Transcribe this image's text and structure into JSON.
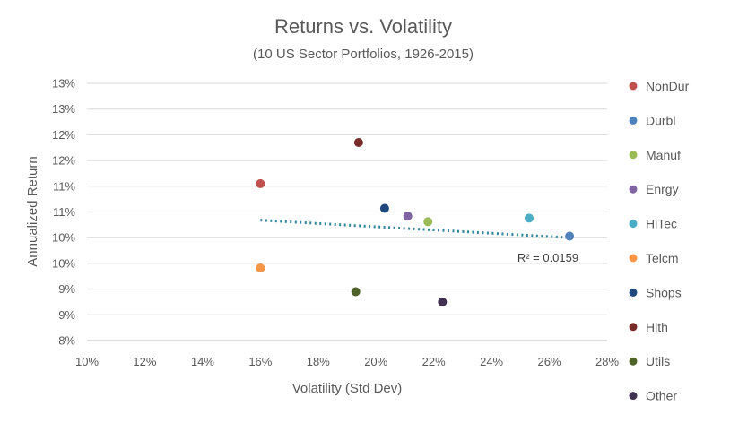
{
  "chart_data": {
    "type": "scatter",
    "title": "Returns vs. Volatility",
    "subtitle": "(10 US Sector Portfolios, 1926-2015)",
    "xlabel": "Volatility (Std Dev)",
    "ylabel": "Annualized Return",
    "xlim": [
      0.1,
      0.28
    ],
    "ylim": [
      0.08,
      0.13
    ],
    "x_ticks": [
      0.1,
      0.12,
      0.14,
      0.16,
      0.18,
      0.2,
      0.22,
      0.24,
      0.26,
      0.28
    ],
    "x_tick_labels": [
      "10%",
      "12%",
      "14%",
      "16%",
      "18%",
      "20%",
      "22%",
      "24%",
      "26%",
      "28%"
    ],
    "y_ticks": [
      0.08,
      0.085,
      0.09,
      0.095,
      0.1,
      0.105,
      0.11,
      0.115,
      0.12,
      0.125,
      0.13
    ],
    "y_tick_labels": [
      "8%",
      "9%",
      "9%",
      "10%",
      "10%",
      "11%",
      "11%",
      "12%",
      "12%",
      "13%",
      "13%"
    ],
    "grid": "horizontal",
    "legend_position": "right",
    "series": [
      {
        "name": "NonDur",
        "color": "#c0504d",
        "x": 0.16,
        "y": 0.1105
      },
      {
        "name": "Durbl",
        "color": "#4f81bd",
        "x": 0.267,
        "y": 0.1003
      },
      {
        "name": "Manuf",
        "color": "#9bbb59",
        "x": 0.218,
        "y": 0.1031
      },
      {
        "name": "Enrgy",
        "color": "#8064a2",
        "x": 0.211,
        "y": 0.1042
      },
      {
        "name": "HiTec",
        "color": "#4bacc6",
        "x": 0.253,
        "y": 0.1038
      },
      {
        "name": "Telcm",
        "color": "#f79646",
        "x": 0.16,
        "y": 0.0941
      },
      {
        "name": "Shops",
        "color": "#1f497d",
        "x": 0.203,
        "y": 0.1057
      },
      {
        "name": "Hlth",
        "color": "#772c2a",
        "x": 0.194,
        "y": 0.1185
      },
      {
        "name": "Utils",
        "color": "#4f6228",
        "x": 0.193,
        "y": 0.0895
      },
      {
        "name": "Other",
        "color": "#403151",
        "x": 0.223,
        "y": 0.0875
      }
    ],
    "trendline": {
      "type": "linear",
      "style": "dotted",
      "color": "#31859c",
      "x": [
        0.16,
        0.267
      ],
      "y": [
        0.1034,
        0.1
      ],
      "r2_label": "R² = 0.0159"
    }
  }
}
